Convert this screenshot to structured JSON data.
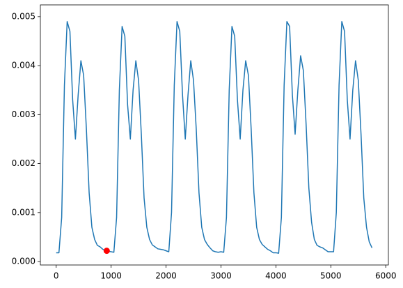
{
  "chart_data": {
    "type": "line",
    "x": [
      0,
      50,
      100,
      150,
      200,
      250,
      300,
      350,
      400,
      450,
      500,
      550,
      600,
      650,
      700,
      750,
      800,
      850,
      900,
      950,
      1000,
      1050,
      1100,
      1150,
      1200,
      1250,
      1300,
      1350,
      1400,
      1450,
      1500,
      1550,
      1600,
      1650,
      1700,
      1750,
      1800,
      1850,
      1900,
      1950,
      2000,
      2050,
      2100,
      2150,
      2200,
      2250,
      2300,
      2350,
      2400,
      2450,
      2500,
      2550,
      2600,
      2650,
      2700,
      2750,
      2800,
      2850,
      2900,
      2950,
      3000,
      3050,
      3100,
      3150,
      3200,
      3250,
      3300,
      3350,
      3400,
      3450,
      3500,
      3550,
      3600,
      3650,
      3700,
      3750,
      3800,
      3850,
      3900,
      3950,
      4000,
      4050,
      4100,
      4150,
      4200,
      4250,
      4300,
      4350,
      4400,
      4450,
      4500,
      4550,
      4600,
      4650,
      4700,
      4750,
      4800,
      4850,
      4900,
      4950,
      5000,
      5050,
      5100,
      5150,
      5200,
      5250,
      5300,
      5350,
      5400,
      5450,
      5500,
      5550,
      5600,
      5650,
      5700,
      5750
    ],
    "series": [
      {
        "color": "#1f77b4",
        "values": [
          0.00018,
          0.00018,
          0.0009,
          0.0036,
          0.0049,
          0.0047,
          0.0033,
          0.0025,
          0.0034,
          0.0041,
          0.0038,
          0.0027,
          0.0014,
          0.0007,
          0.00045,
          0.00033,
          0.0003,
          0.00025,
          0.00022,
          0.00021,
          0.0002,
          0.00019,
          0.0009,
          0.0035,
          0.0048,
          0.0046,
          0.0032,
          0.0025,
          0.0035,
          0.0041,
          0.0037,
          0.0026,
          0.0013,
          0.0007,
          0.00045,
          0.00034,
          0.0003,
          0.00026,
          0.00025,
          0.00024,
          0.00022,
          0.0002,
          0.001,
          0.0036,
          0.0049,
          0.0047,
          0.0034,
          0.0025,
          0.0034,
          0.0041,
          0.0037,
          0.0027,
          0.0014,
          0.0007,
          0.00045,
          0.00035,
          0.00028,
          0.00022,
          0.0002,
          0.00019,
          0.0002,
          0.00019,
          0.0009,
          0.0035,
          0.0048,
          0.0046,
          0.0033,
          0.0025,
          0.0035,
          0.0041,
          0.0038,
          0.0027,
          0.0014,
          0.0007,
          0.00045,
          0.00035,
          0.0003,
          0.00025,
          0.00022,
          0.00018,
          0.00018,
          0.00017,
          0.0009,
          0.0036,
          0.0049,
          0.0048,
          0.0034,
          0.0026,
          0.0035,
          0.0042,
          0.0039,
          0.0028,
          0.0015,
          0.0008,
          0.00045,
          0.00033,
          0.0003,
          0.00028,
          0.00024,
          0.0002,
          0.0002,
          0.0002,
          0.001,
          0.0036,
          0.0049,
          0.0047,
          0.0033,
          0.0025,
          0.0035,
          0.0041,
          0.0037,
          0.0026,
          0.0013,
          0.0007,
          0.0004,
          0.00028
        ]
      }
    ],
    "points": [
      {
        "x": 920,
        "y": 0.00022,
        "color": "red"
      }
    ],
    "xlim": [
      -288,
      6048
    ],
    "xticks": [
      0,
      1000,
      2000,
      3000,
      4000,
      5000,
      6000
    ],
    "ylim": [
      -7e-05,
      0.00524
    ],
    "yticks": [
      {
        "value": 0,
        "label": "0.000"
      },
      0.001,
      0.002,
      0.003,
      0.004,
      0.005
    ]
  }
}
